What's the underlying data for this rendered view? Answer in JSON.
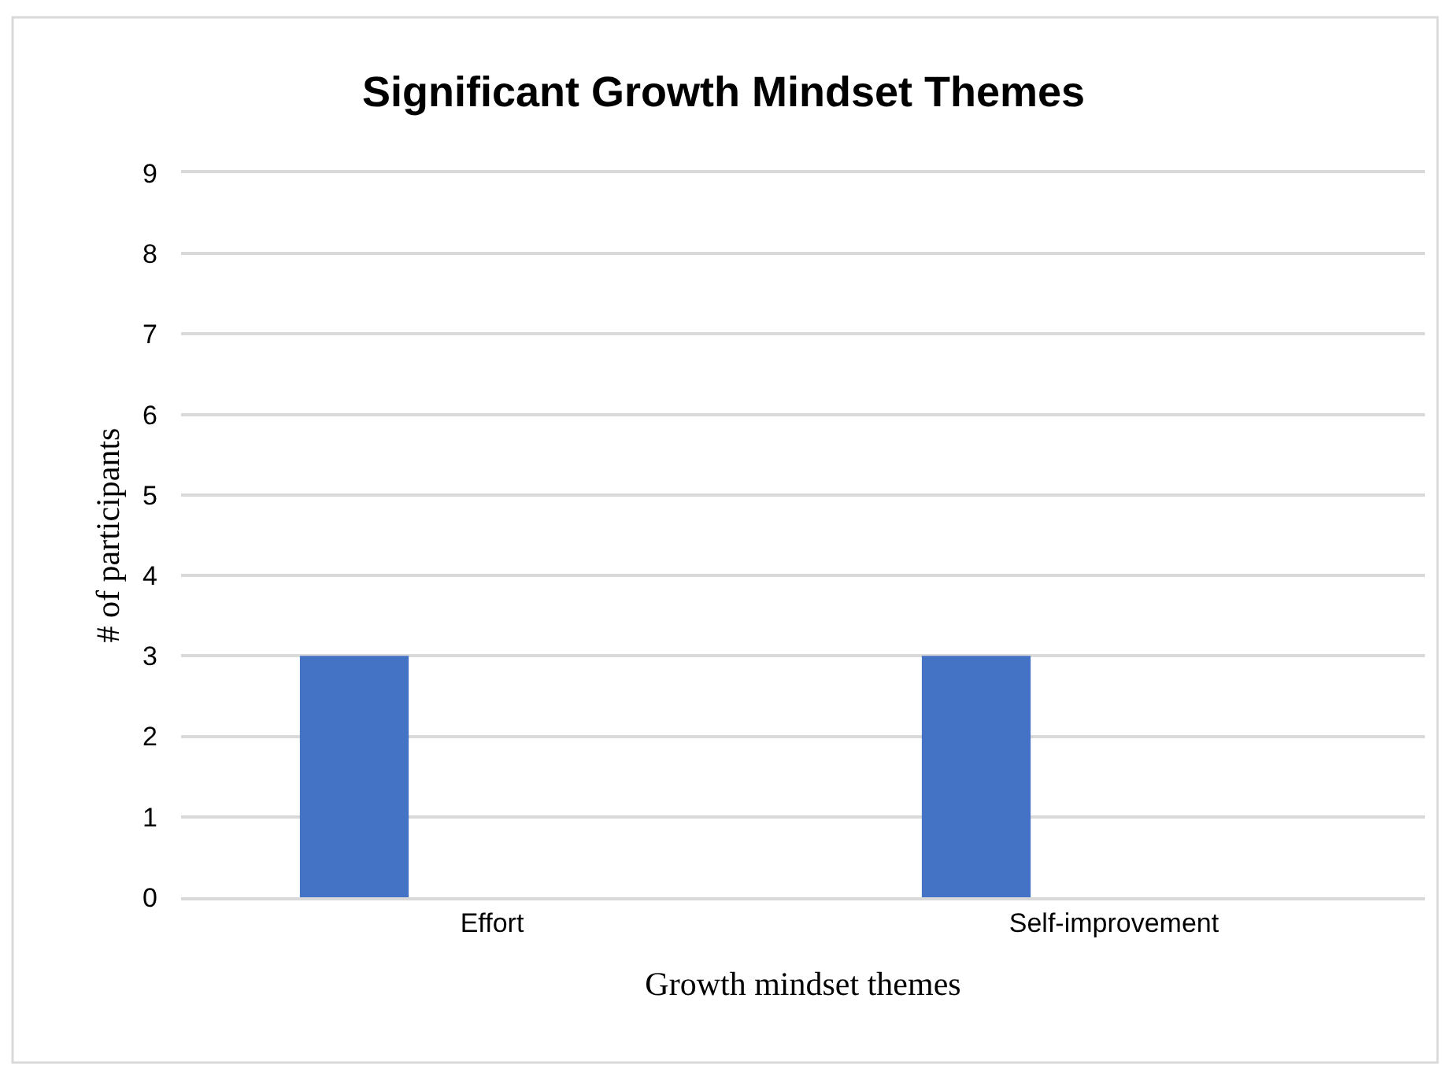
{
  "chart_data": {
    "type": "bar",
    "title": "Significant Growth Mindset Themes",
    "xlabel": "Growth mindset themes",
    "ylabel": "# of participants",
    "categories": [
      "Effort",
      "Self-improvement"
    ],
    "series": [
      {
        "color": "#4472c4",
        "values": [
          3,
          3
        ]
      }
    ],
    "ylim": [
      0,
      9
    ],
    "yticks": [
      0,
      1,
      2,
      3,
      4,
      5,
      6,
      7,
      8,
      9
    ],
    "grid": "y"
  }
}
